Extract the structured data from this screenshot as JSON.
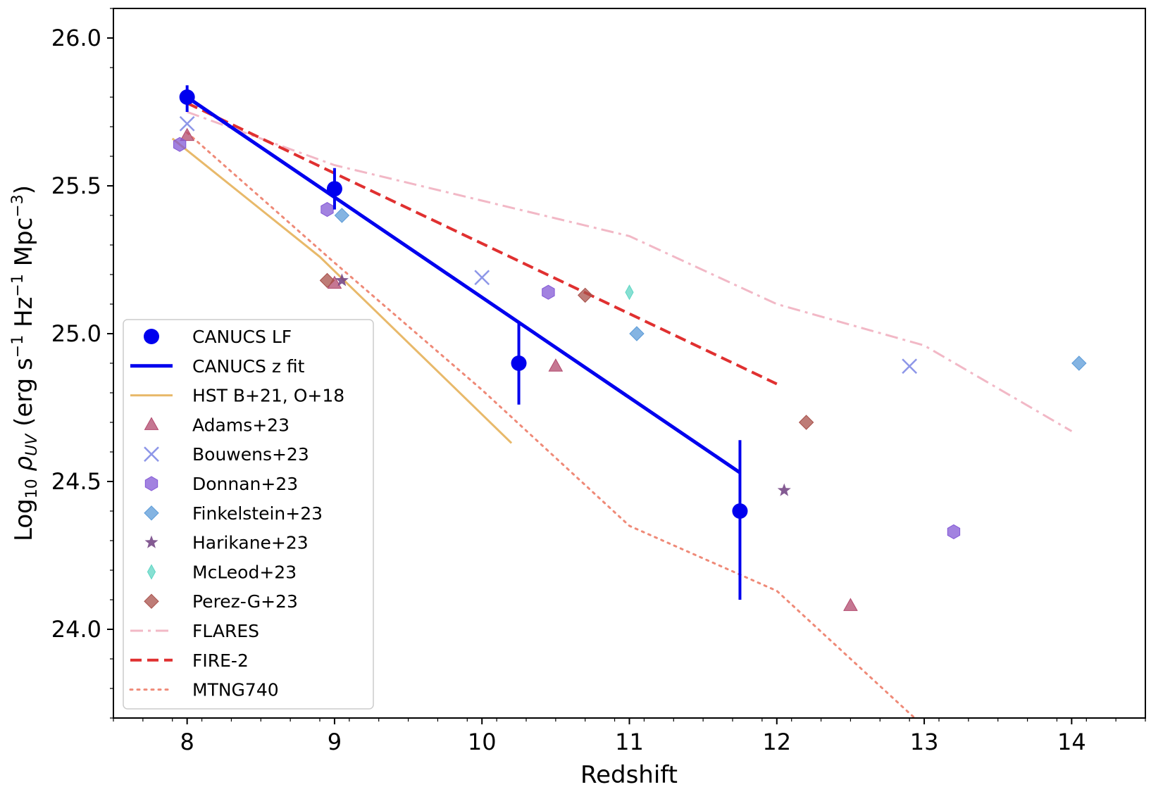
{
  "chart_data": {
    "type": "scatter",
    "title": "",
    "xlabel": "Redshift",
    "ylabel": {
      "prefix": "Log",
      "prefix_sub": "10",
      "symbol": "ρ",
      "symbol_sub": "UV",
      "units_open": " (erg s",
      "units_exp1": "−1",
      "units_mid": " Hz",
      "units_exp2": "−1",
      "units_mid2": " Mpc",
      "units_exp3": "−3",
      "units_close": ")"
    },
    "xlim": [
      7.5,
      14.5
    ],
    "ylim": [
      23.7,
      26.1
    ],
    "xticks": [
      8,
      9,
      10,
      11,
      12,
      13,
      14
    ],
    "yticks": [
      24.0,
      24.5,
      25.0,
      25.5,
      26.0
    ],
    "ytick_labels": [
      "24.0",
      "24.5",
      "25.0",
      "25.5",
      "26.0"
    ],
    "xtick_labels": [
      "8",
      "9",
      "10",
      "11",
      "12",
      "13",
      "14"
    ],
    "grid": false,
    "legend_position": "lower-left",
    "series": [
      {
        "name": "CANUCS LF",
        "kind": "errorbar",
        "marker": "circle",
        "color": "#0000ee",
        "points": [
          {
            "x": 8.0,
            "y": 25.8,
            "yerr": [
              0.05,
              0.04
            ]
          },
          {
            "x": 9.0,
            "y": 25.49,
            "yerr": [
              0.07,
              0.07
            ]
          },
          {
            "x": 10.25,
            "y": 24.9,
            "yerr": [
              0.14,
              0.14
            ]
          },
          {
            "x": 11.75,
            "y": 24.4,
            "yerr": [
              0.3,
              0.24
            ]
          }
        ]
      },
      {
        "name": "CANUCS z fit",
        "kind": "line",
        "color": "#0000ee",
        "dash": "solid",
        "width": 5,
        "points": [
          {
            "x": 8.0,
            "y": 25.8
          },
          {
            "x": 11.75,
            "y": 24.53
          }
        ]
      },
      {
        "name": "HST B+21, O+18",
        "kind": "line",
        "color": "#e8b96a",
        "dash": "solid",
        "width": 3,
        "points": [
          {
            "x": 7.9,
            "y": 25.66
          },
          {
            "x": 8.9,
            "y": 25.26
          },
          {
            "x": 10.2,
            "y": 24.63
          }
        ]
      },
      {
        "name": "Adams+23",
        "kind": "scatter",
        "marker": "triangle",
        "color": "#b24a6e",
        "points": [
          {
            "x": 8.0,
            "y": 25.67
          },
          {
            "x": 9.0,
            "y": 25.17
          },
          {
            "x": 10.5,
            "y": 24.89
          },
          {
            "x": 12.5,
            "y": 24.08
          }
        ]
      },
      {
        "name": "Bouwens+23",
        "kind": "scatter",
        "marker": "x",
        "color": "#8d96e8",
        "points": [
          {
            "x": 8.0,
            "y": 25.71
          },
          {
            "x": 10.0,
            "y": 25.19
          },
          {
            "x": 12.9,
            "y": 24.89
          }
        ]
      },
      {
        "name": "Donnan+23",
        "kind": "scatter",
        "marker": "hexagon",
        "color": "#8358d6",
        "points": [
          {
            "x": 7.95,
            "y": 25.64
          },
          {
            "x": 8.95,
            "y": 25.42
          },
          {
            "x": 10.45,
            "y": 25.14
          },
          {
            "x": 13.2,
            "y": 24.33
          }
        ]
      },
      {
        "name": "Finkelstein+23",
        "kind": "scatter",
        "marker": "diamond",
        "color": "#5b9bd8",
        "points": [
          {
            "x": 9.05,
            "y": 25.4
          },
          {
            "x": 11.05,
            "y": 25.0
          },
          {
            "x": 14.05,
            "y": 24.9
          }
        ]
      },
      {
        "name": "Harikane+23",
        "kind": "scatter",
        "marker": "star",
        "color": "#6e3e80",
        "points": [
          {
            "x": 9.05,
            "y": 25.18
          },
          {
            "x": 12.05,
            "y": 24.47
          }
        ]
      },
      {
        "name": "McLeod+23",
        "kind": "scatter",
        "marker": "thin-diamond",
        "color": "#5fd6c4",
        "points": [
          {
            "x": 11.0,
            "y": 25.14
          }
        ]
      },
      {
        "name": "Perez-G+23",
        "kind": "scatter",
        "marker": "diamond",
        "color": "#a8504a",
        "points": [
          {
            "x": 8.95,
            "y": 25.18
          },
          {
            "x": 10.7,
            "y": 25.13
          },
          {
            "x": 12.2,
            "y": 24.7
          }
        ]
      },
      {
        "name": "FLARES",
        "kind": "line",
        "color": "#f2b8c6",
        "dash": "dashdot",
        "width": 3,
        "points": [
          {
            "x": 8.0,
            "y": 25.75
          },
          {
            "x": 9.0,
            "y": 25.57
          },
          {
            "x": 10.0,
            "y": 25.45
          },
          {
            "x": 11.0,
            "y": 25.33
          },
          {
            "x": 12.0,
            "y": 25.1
          },
          {
            "x": 13.0,
            "y": 24.96
          },
          {
            "x": 14.0,
            "y": 24.67
          }
        ]
      },
      {
        "name": "FIRE-2",
        "kind": "line",
        "color": "#e03030",
        "dash": "dashed",
        "width": 4,
        "points": [
          {
            "x": 8.0,
            "y": 25.78
          },
          {
            "x": 12.0,
            "y": 24.83
          }
        ]
      },
      {
        "name": "MTNG740",
        "kind": "line",
        "color": "#ef8a78",
        "dash": "dotted",
        "width": 3,
        "points": [
          {
            "x": 8.0,
            "y": 25.68
          },
          {
            "x": 9.0,
            "y": 25.24
          },
          {
            "x": 10.0,
            "y": 24.81
          },
          {
            "x": 11.0,
            "y": 24.35
          },
          {
            "x": 12.0,
            "y": 24.13
          },
          {
            "x": 13.0,
            "y": 23.67
          }
        ]
      }
    ]
  }
}
